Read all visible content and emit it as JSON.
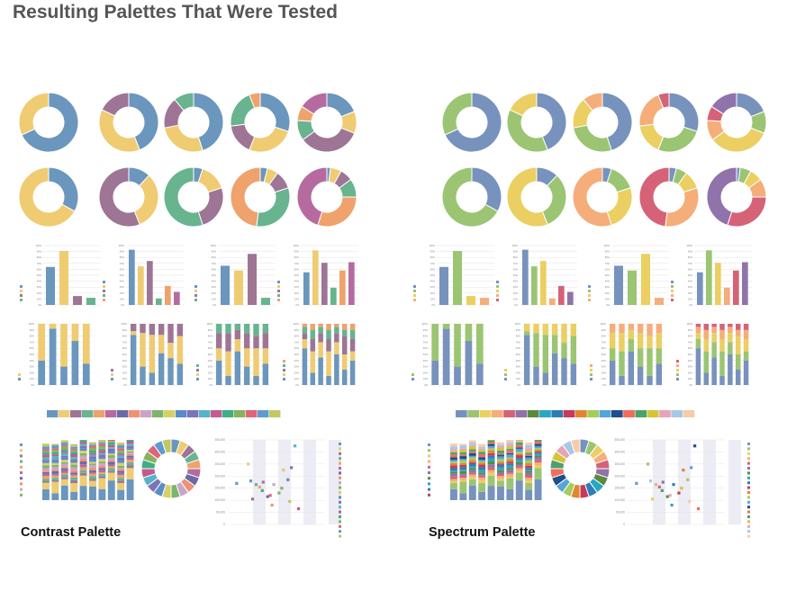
{
  "title": "Resulting Palettes That Were Tested",
  "palettes": [
    {
      "name": "Contrast Palette",
      "colors": [
        "#6b96bd",
        "#efcb72",
        "#9e7595",
        "#67b48f",
        "#efa26c",
        "#b66aa0",
        "#6b6aa5",
        "#ed9274",
        "#c9a4c9",
        "#7cb56b",
        "#d8d067",
        "#5a8cc7",
        "#7e73b8",
        "#56b4c8",
        "#c55a8c",
        "#3fae84",
        "#8ab15b",
        "#e0647a",
        "#5d9bd1",
        "#c2c864"
      ]
    },
    {
      "name": "Spectrum Palette",
      "colors": [
        "#7792bd",
        "#9bc572",
        "#ebcf62",
        "#f5ad7a",
        "#d66278",
        "#8f73aa",
        "#5a8a3c",
        "#27a8c2",
        "#2f7db5",
        "#c63a5c",
        "#e3842f",
        "#a4cd59",
        "#54a5d8",
        "#1f4e8c",
        "#f06d5c",
        "#4aa26a",
        "#d6c339",
        "#e5a5b6",
        "#a7c7e7",
        "#f7cba8"
      ]
    }
  ],
  "chart_data": [
    {
      "type": "pie",
      "description": "Donut charts (2 rows x 5 per palette), slice counts 2 to 6 per chart; values are fractions of the whole",
      "row1": [
        [
          0.68,
          0.32
        ],
        [
          0.44,
          0.38,
          0.18
        ],
        [
          0.45,
          0.27,
          0.17,
          0.11
        ],
        [
          0.3,
          0.26,
          0.17,
          0.21,
          0.06
        ],
        [
          0.19,
          0.12,
          0.34,
          0.11,
          0.08,
          0.16
        ]
      ],
      "row2": [
        [
          0.33,
          0.67
        ],
        [
          0.12,
          0.32,
          0.56
        ],
        [
          0.05,
          0.15,
          0.25,
          0.55
        ],
        [
          0.04,
          0.06,
          0.1,
          0.32,
          0.48
        ],
        [
          0.02,
          0.06,
          0.07,
          0.1,
          0.3,
          0.45
        ]
      ]
    },
    {
      "type": "bar",
      "description": "Clustered bar charts, 2 to 5 series",
      "y_ticks": [
        "100%",
        "90%",
        "80%",
        "70%",
        "60%",
        "50%",
        "40%",
        "30%",
        "20%",
        "10%",
        "0%"
      ],
      "ylim": [
        0,
        100
      ],
      "charts": [
        [
          64,
          91,
          15,
          12
        ],
        [
          93,
          65,
          74,
          11,
          32,
          22
        ],
        [
          66,
          58,
          86,
          12
        ],
        [
          55,
          92,
          71,
          29,
          58,
          72
        ]
      ]
    },
    {
      "type": "bar",
      "description": "100% stacked bar charts, 2 to 5 series",
      "y_ticks": [
        "100%",
        "90%",
        "80%",
        "70%",
        "60%",
        "50%",
        "40%",
        "30%",
        "20%",
        "10%",
        "0%"
      ],
      "ylim": [
        0,
        100
      ],
      "charts": [
        {
          "series": 2,
          "columns": [
            [
              40,
              60
            ],
            [
              92,
              8
            ],
            [
              30,
              70
            ],
            [
              72,
              28
            ],
            [
              35,
              65
            ]
          ]
        },
        {
          "series": 3,
          "columns": [
            [
              82,
              6,
              12
            ],
            [
              30,
              55,
              15
            ],
            [
              20,
              62,
              18
            ],
            [
              52,
              30,
              18
            ],
            [
              44,
              25,
              31
            ],
            [
              35,
              45,
              20
            ]
          ]
        },
        {
          "series": 4,
          "columns": [
            [
              40,
              20,
              25,
              15
            ],
            [
              15,
              40,
              30,
              15
            ],
            [
              55,
              20,
              15,
              10
            ],
            [
              30,
              30,
              25,
              15
            ],
            [
              15,
              45,
              20,
              20
            ],
            [
              35,
              25,
              25,
              15
            ]
          ]
        },
        {
          "series": 5,
          "columns": [
            [
              60,
              15,
              10,
              10,
              5
            ],
            [
              20,
              35,
              20,
              15,
              10
            ],
            [
              45,
              25,
              15,
              10,
              5
            ],
            [
              15,
              40,
              20,
              15,
              10
            ],
            [
              50,
              20,
              15,
              10,
              5
            ],
            [
              25,
              25,
              30,
              10,
              10
            ],
            [
              40,
              15,
              20,
              15,
              10
            ]
          ]
        }
      ]
    },
    {
      "type": "bar",
      "description": "100% stacked columns using all palette colors (10 columns, 20 series)",
      "ylim": [
        0,
        100
      ],
      "columns": 10
    },
    {
      "type": "pie",
      "description": "Donut with 20 equal slices, one per palette color",
      "slices": 20
    },
    {
      "type": "scatter",
      "description": "Scatter plot, one point per series",
      "y_ticks": [
        "350,000",
        "300,000",
        "250,000",
        "200,000",
        "150,000",
        "100,000",
        "50,000",
        "0"
      ],
      "ylim": [
        0,
        350000
      ],
      "xlim": [
        0,
        11
      ],
      "points": [
        [
          1,
          170000
        ],
        [
          2.3,
          250000
        ],
        [
          2.8,
          105000
        ],
        [
          3.2,
          165000
        ],
        [
          3.6,
          155000
        ],
        [
          4.0,
          175000
        ],
        [
          4.5,
          115000
        ],
        [
          5.0,
          80000
        ],
        [
          5.2,
          165000
        ],
        [
          5.8,
          130000
        ],
        [
          6.3,
          225000
        ],
        [
          6.8,
          185000
        ],
        [
          7.2,
          235000
        ],
        [
          7.6,
          325000
        ],
        [
          8.0,
          65000
        ],
        [
          3.9,
          140000
        ],
        [
          6.1,
          150000
        ],
        [
          4.8,
          120000
        ],
        [
          2.6,
          180000
        ],
        [
          7.0,
          95000
        ]
      ]
    }
  ]
}
